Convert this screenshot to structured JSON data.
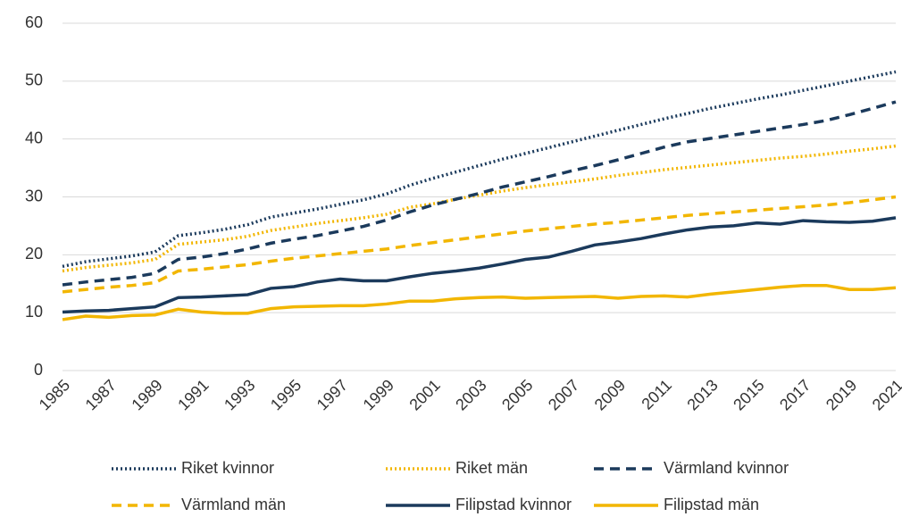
{
  "chart_data": {
    "type": "line",
    "categories": [
      "1985",
      null,
      "1987",
      null,
      "1989",
      null,
      "1991",
      null,
      "1993",
      null,
      "1995",
      null,
      "1997",
      null,
      "1999",
      null,
      "2001",
      null,
      "2003",
      null,
      "2005",
      null,
      "2007",
      null,
      "2009",
      null,
      "2011",
      null,
      "2013",
      null,
      "2015",
      null,
      "2017",
      null,
      "2019",
      null,
      "2021"
    ],
    "ylim": [
      0,
      60
    ],
    "yticks": [
      0,
      10,
      20,
      30,
      40,
      50,
      60
    ],
    "grid": true,
    "legend": "bottom",
    "series": [
      {
        "name": "Riket kvinnor",
        "color": "#1b3a5c",
        "dash": "dotted",
        "values": [
          18,
          18.8,
          19.3,
          19.8,
          20.5,
          23.3,
          23.8,
          24.4,
          25.2,
          26.5,
          27.2,
          27.9,
          28.7,
          29.5,
          30.5,
          32.0,
          33.2,
          34.3,
          35.4,
          36.5,
          37.5,
          38.5,
          39.5,
          40.5,
          41.5,
          42.5,
          43.5,
          44.4,
          45.3,
          46.1,
          46.9,
          47.6,
          48.4,
          49.2,
          50.0,
          50.8,
          51.6
        ]
      },
      {
        "name": "Riket män",
        "color": "#f2b600",
        "dash": "dotted",
        "values": [
          17.2,
          17.8,
          18.2,
          18.6,
          19.2,
          21.8,
          22.2,
          22.6,
          23.2,
          24.2,
          24.8,
          25.4,
          25.9,
          26.4,
          27.0,
          28.2,
          28.8,
          29.6,
          30.3,
          31.0,
          31.6,
          32.1,
          32.6,
          33.1,
          33.7,
          34.2,
          34.7,
          35.1,
          35.5,
          35.9,
          36.3,
          36.7,
          37.0,
          37.4,
          37.9,
          38.3,
          38.8
        ]
      },
      {
        "name": "Värmland kvinnor",
        "color": "#1b3a5c",
        "dash": "dashed",
        "values": [
          14.8,
          15.3,
          15.7,
          16.1,
          16.8,
          19.2,
          19.6,
          20.2,
          21.0,
          22.0,
          22.7,
          23.3,
          24.1,
          24.9,
          26.0,
          27.4,
          28.6,
          29.6,
          30.6,
          31.7,
          32.6,
          33.5,
          34.5,
          35.4,
          36.4,
          37.5,
          38.6,
          39.5,
          40.1,
          40.7,
          41.3,
          41.9,
          42.5,
          43.2,
          44.2,
          45.3,
          46.4
        ]
      },
      {
        "name": "Värmland män",
        "color": "#f2b600",
        "dash": "dashed",
        "values": [
          13.6,
          14.0,
          14.4,
          14.7,
          15.2,
          17.2,
          17.5,
          17.9,
          18.3,
          18.9,
          19.4,
          19.8,
          20.2,
          20.6,
          21.0,
          21.6,
          22.1,
          22.6,
          23.1,
          23.6,
          24.1,
          24.5,
          24.9,
          25.3,
          25.6,
          26.0,
          26.4,
          26.8,
          27.1,
          27.4,
          27.7,
          28.0,
          28.3,
          28.6,
          29.0,
          29.5,
          30.0
        ]
      },
      {
        "name": "Filipstad kvinnor",
        "color": "#1b3a5c",
        "dash": "solid",
        "values": [
          10.1,
          10.3,
          10.4,
          10.7,
          11.0,
          12.6,
          12.7,
          12.9,
          13.1,
          14.2,
          14.5,
          15.3,
          15.8,
          15.5,
          15.5,
          16.2,
          16.8,
          17.2,
          17.7,
          18.4,
          19.2,
          19.6,
          20.6,
          21.7,
          22.2,
          22.8,
          23.6,
          24.3,
          24.8,
          25.0,
          25.5,
          25.3,
          25.9,
          25.7,
          25.6,
          25.8,
          26.4
        ]
      },
      {
        "name": "Filipstad män",
        "color": "#f2b600",
        "dash": "solid",
        "values": [
          8.8,
          9.4,
          9.2,
          9.5,
          9.6,
          10.6,
          10.1,
          9.9,
          9.9,
          10.7,
          11.0,
          11.1,
          11.2,
          11.2,
          11.5,
          12.0,
          12.0,
          12.4,
          12.6,
          12.7,
          12.5,
          12.6,
          12.7,
          12.8,
          12.5,
          12.8,
          12.9,
          12.7,
          13.2,
          13.6,
          14.0,
          14.4,
          14.7,
          14.7,
          14.0,
          14.0,
          14.3
        ]
      }
    ]
  }
}
